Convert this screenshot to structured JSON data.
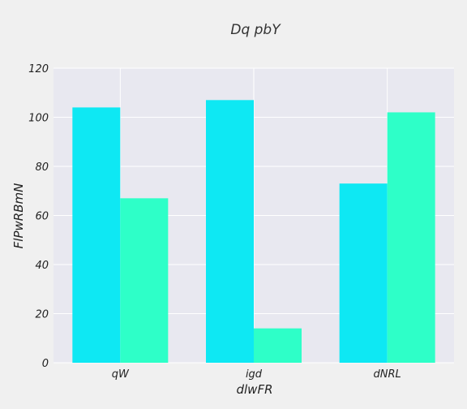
{
  "chart_data": {
    "type": "bar",
    "title": "Dq pbY",
    "xlabel": "dlwFR",
    "ylabel": "FlPwRBmN",
    "categories": [
      "qW",
      "igd",
      "dNRL"
    ],
    "series": [
      {
        "color": "#0ee8f3",
        "values": [
          104,
          107,
          73
        ]
      },
      {
        "color": "#2effc8",
        "values": [
          67,
          14,
          102
        ]
      }
    ],
    "ylim": [
      0,
      120
    ],
    "yticks": [
      0,
      20,
      40,
      60,
      80,
      100,
      120
    ],
    "grid": true,
    "legend": "none"
  },
  "colors": {
    "background": "#f0f0f0",
    "plot_background": "#e8e8f0",
    "grid": "#ffffff"
  }
}
